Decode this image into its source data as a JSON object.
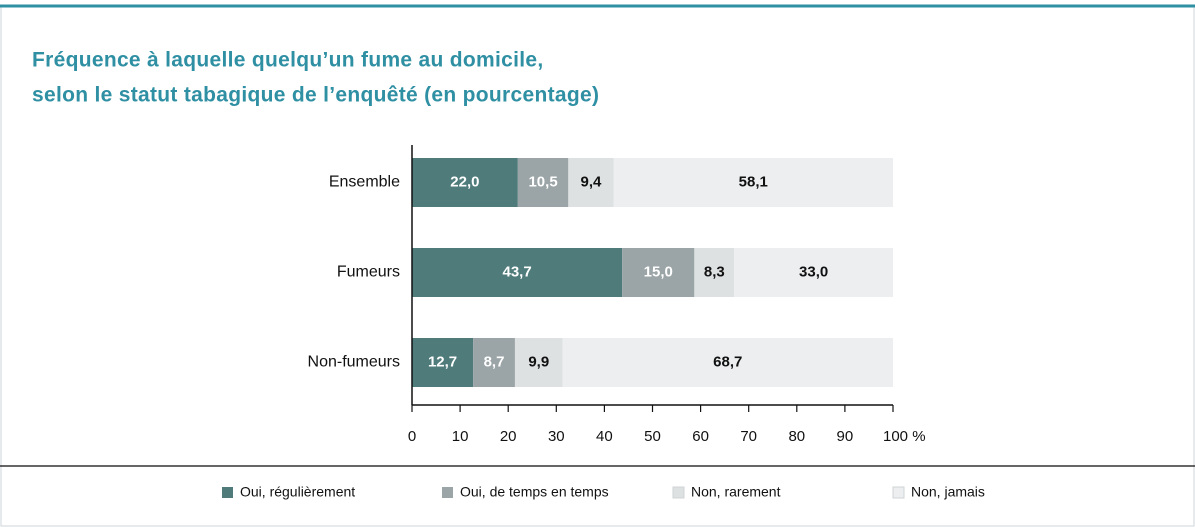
{
  "chart_data": {
    "type": "stacked_barh",
    "title": [
      "Fréquence à laquelle quelqu’un fume au domicile,",
      "selon le statut tabagique de l’enquêté (en pourcentage)"
    ],
    "categories": [
      "Ensemble",
      "Fumeurs",
      "Non-fumeurs"
    ],
    "series": [
      {
        "name": "Oui, régulièrement",
        "color": "#4f7b7b",
        "label_color": "#ffffff",
        "values": [
          22.0,
          43.7,
          12.7
        ],
        "value_labels": [
          "22,0",
          "43,7",
          "12,7"
        ]
      },
      {
        "name": "Oui, de temps en temps",
        "color": "#9ba4a6",
        "label_color": "#ffffff",
        "values": [
          10.5,
          15.0,
          8.7
        ],
        "value_labels": [
          "10,5",
          "15,0",
          "8,7"
        ]
      },
      {
        "name": "Non, rarement",
        "color": "#dde1e2",
        "label_color": "#111111",
        "values": [
          9.4,
          8.3,
          9.9
        ],
        "value_labels": [
          "9,4",
          "8,3",
          "9,9"
        ]
      },
      {
        "name": "Non, jamais",
        "color": "#eceef0",
        "label_color": "#111111",
        "values": [
          58.1,
          33.0,
          68.7
        ],
        "value_labels": [
          "58,1",
          "33,0",
          "68,7"
        ]
      }
    ],
    "xlim": [
      0,
      100
    ],
    "xticks": [
      0,
      10,
      20,
      30,
      40,
      50,
      60,
      70,
      80,
      90,
      {
        "value": 100,
        "label": "100 %"
      }
    ],
    "legend": "bottom"
  }
}
